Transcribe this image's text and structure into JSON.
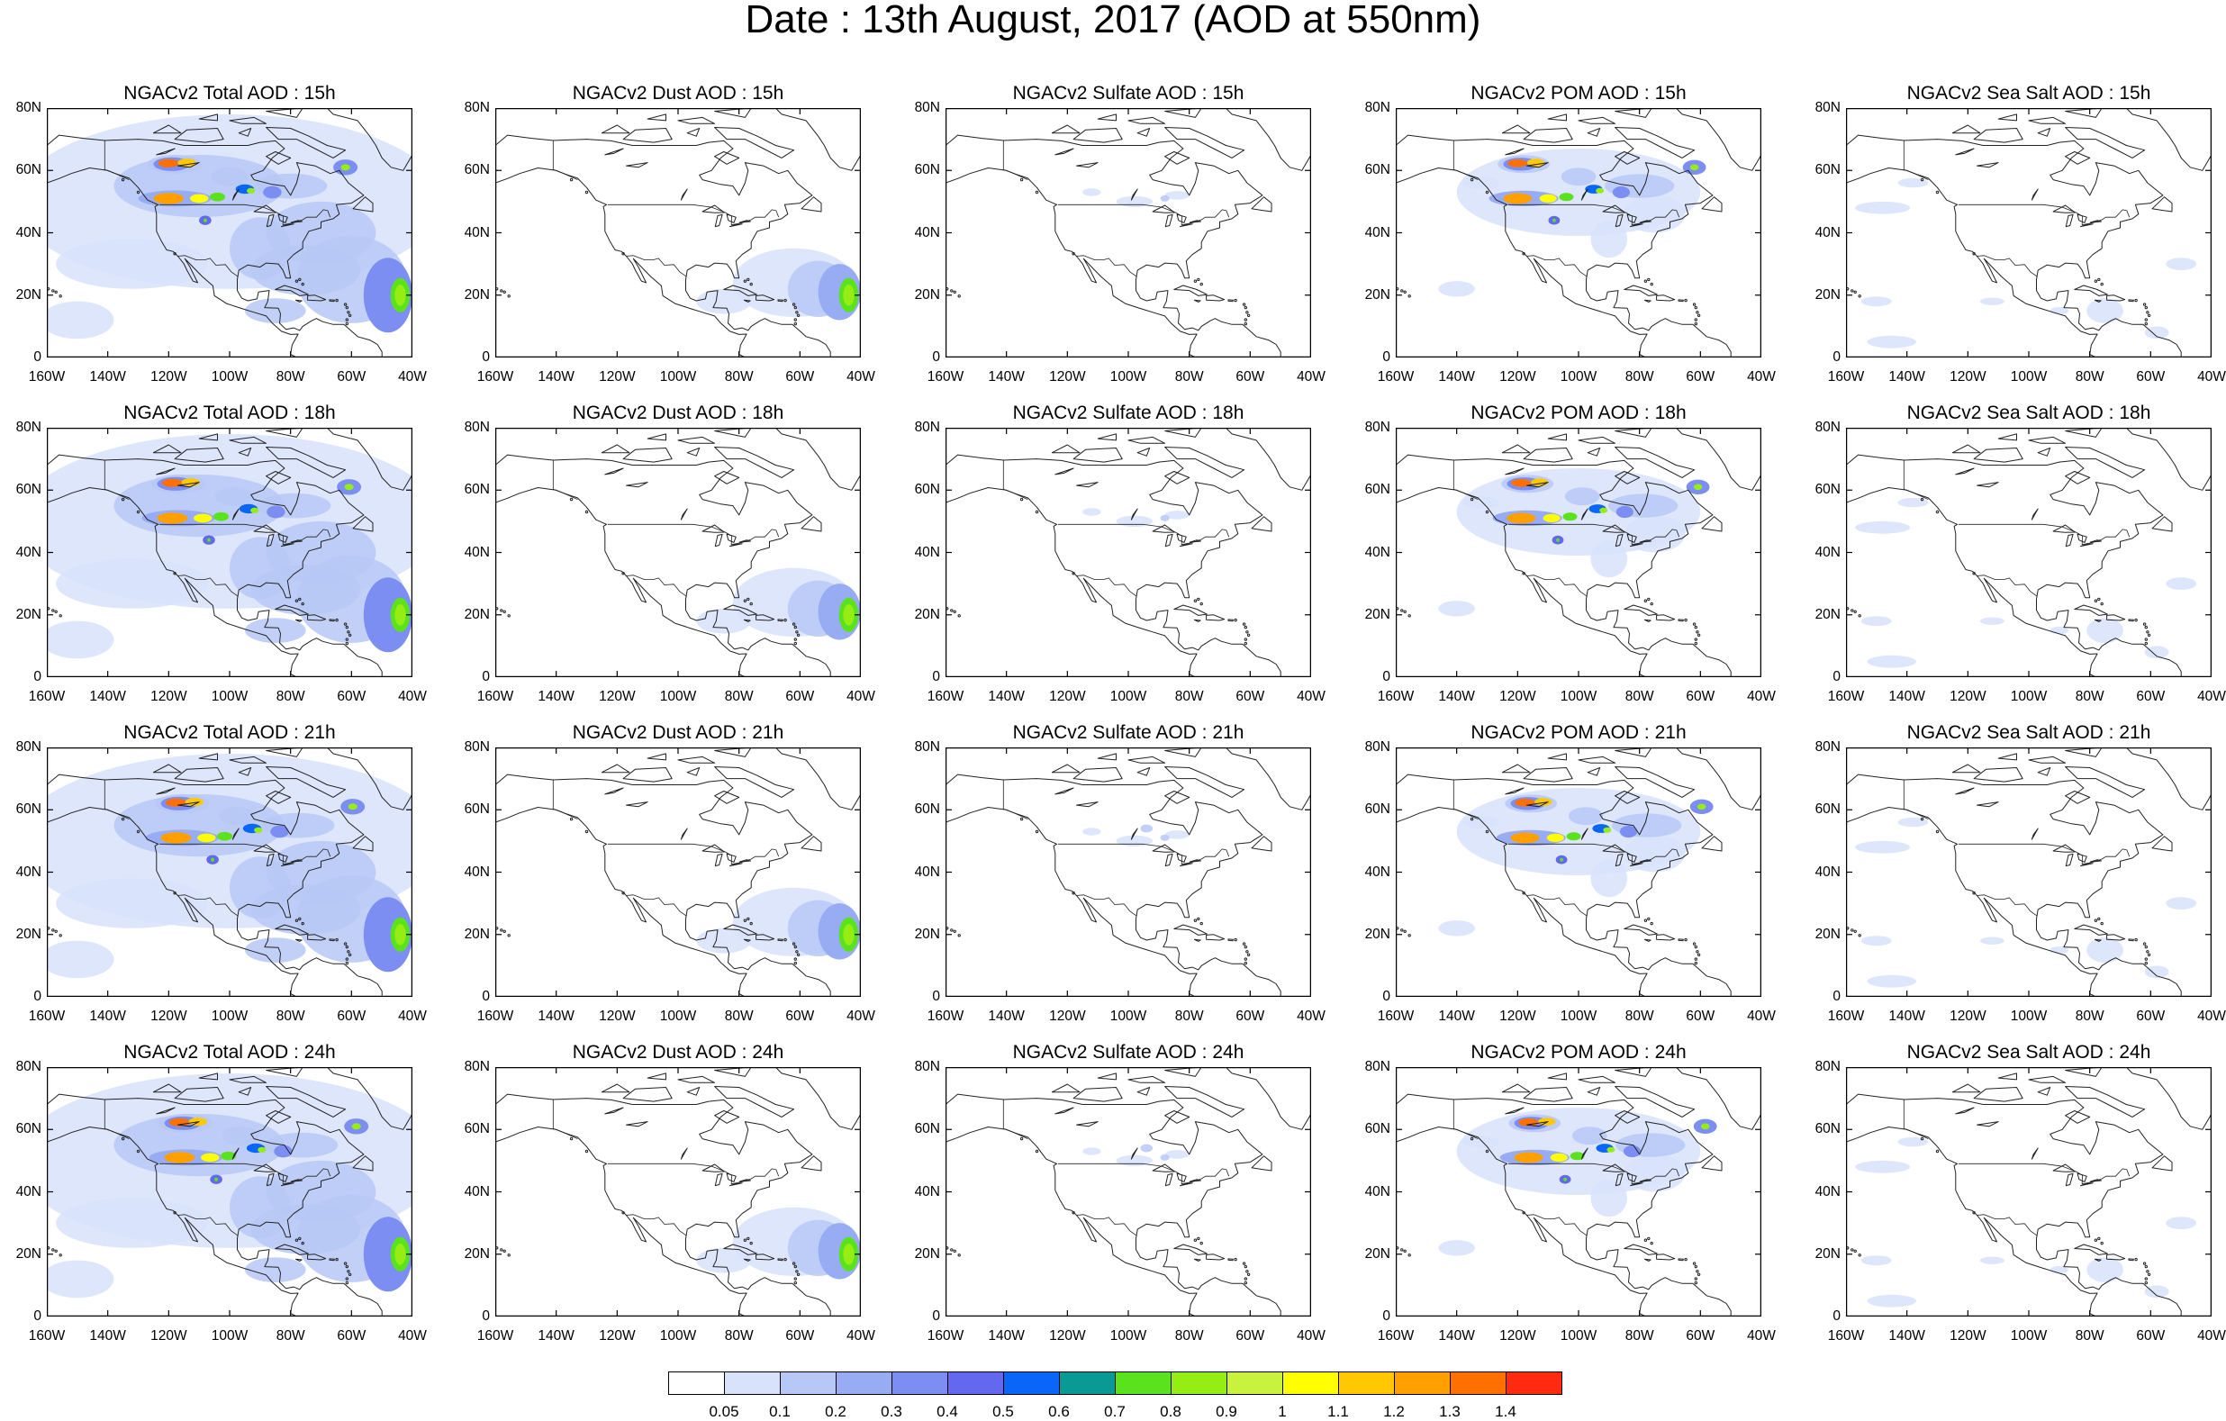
{
  "title": "Date : 13th August, 2017 (AOD at 550nm)",
  "panel_titles": [
    [
      "NGACv2 Total AOD : 15h",
      "NGACv2 Dust AOD : 15h",
      "NGACv2 Sulfate AOD : 15h",
      "NGACv2 POM AOD : 15h",
      "NGACv2 Sea Salt AOD : 15h"
    ],
    [
      "NGACv2 Total AOD : 18h",
      "NGACv2 Dust AOD : 18h",
      "NGACv2 Sulfate AOD : 18h",
      "NGACv2 POM AOD : 18h",
      "NGACv2 Sea Salt AOD : 18h"
    ],
    [
      "NGACv2 Total AOD : 21h",
      "NGACv2 Dust AOD : 21h",
      "NGACv2 Sulfate AOD : 21h",
      "NGACv2 POM AOD : 21h",
      "NGACv2 Sea Salt AOD : 21h"
    ],
    [
      "NGACv2 Total AOD : 24h",
      "NGACv2 Dust AOD : 24h",
      "NGACv2 Sulfate AOD : 24h",
      "NGACv2 POM AOD : 24h",
      "NGACv2 Sea Salt  AOD : 24h"
    ]
  ],
  "lat_ticks": [
    "80N",
    "60N",
    "40N",
    "20N",
    "0"
  ],
  "lon_ticks": [
    "160W",
    "140W",
    "120W",
    "100W",
    "80W",
    "60W",
    "40W"
  ],
  "colorbar": {
    "labels": [
      "0.05",
      "0.1",
      "0.2",
      "0.3",
      "0.4",
      "0.5",
      "0.6",
      "0.7",
      "0.8",
      "0.9",
      "1",
      "1.1",
      "1.2",
      "1.3",
      "1.4"
    ],
    "colors": [
      "#ffffff",
      "#d8e2fb",
      "#b7c8f6",
      "#98acf4",
      "#7d8ef2",
      "#6468ee",
      "#0a66f8",
      "#0a9a96",
      "#5ae21c",
      "#96ed14",
      "#c8f23c",
      "#ffff00",
      "#ffc800",
      "#ffa000",
      "#ff7000",
      "#ff2a10"
    ]
  },
  "species_colors": {
    "land_outline": "#222222",
    "low": "#d8e2fb",
    "mid": "#98acf4",
    "high": "#5ae21c",
    "peak": "#ff2a10"
  }
}
